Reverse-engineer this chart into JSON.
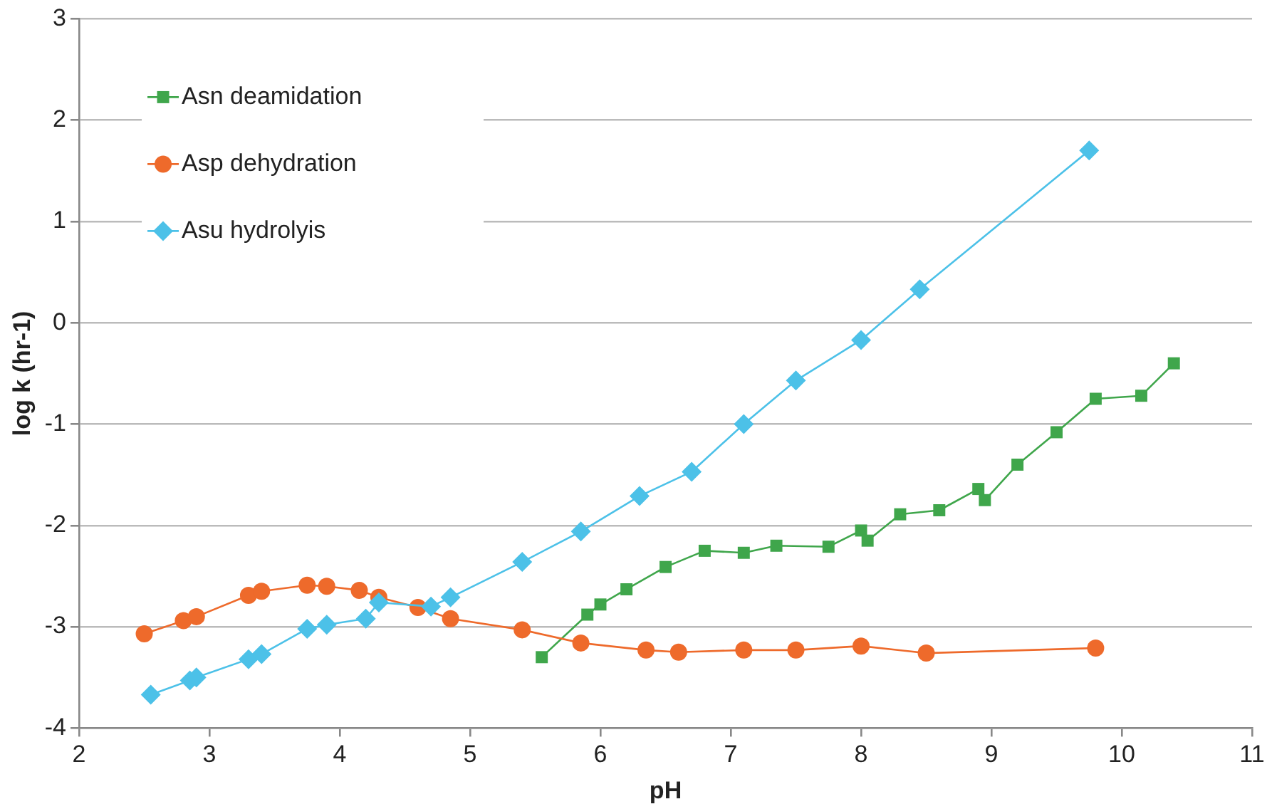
{
  "chart_data": {
    "type": "line",
    "xlabel": "pH",
    "ylabel": "log k (hr-1)",
    "xlim": [
      2,
      11
    ],
    "xticks": [
      2,
      3,
      4,
      5,
      6,
      7,
      8,
      9,
      10,
      11
    ],
    "ylim": [
      -4,
      3
    ],
    "yticks": [
      -4,
      -3,
      -2,
      -1,
      0,
      1,
      2,
      3
    ],
    "grid": "y",
    "legend": "top left",
    "line_style": "solid",
    "series": [
      {
        "name": "Asn deamidation",
        "color": "#3fa64b",
        "marker": "square",
        "x": [
          5.55,
          5.9,
          6.0,
          6.2,
          6.5,
          6.8,
          7.1,
          7.35,
          7.75,
          8.0,
          8.05,
          8.3,
          8.6,
          8.9,
          8.95,
          9.2,
          9.5,
          9.8,
          10.15,
          10.4
        ],
        "values": [
          -3.3,
          -2.88,
          -2.78,
          -2.63,
          -2.41,
          -2.25,
          -2.27,
          -2.2,
          -2.21,
          -2.05,
          -2.15,
          -1.89,
          -1.85,
          -1.64,
          -1.75,
          -1.4,
          -1.08,
          -0.75,
          -0.72,
          -0.4
        ]
      },
      {
        "name": "Asp dehydration",
        "color": "#ee6a2b",
        "marker": "circle",
        "x": [
          2.5,
          2.8,
          2.9,
          3.3,
          3.4,
          3.75,
          3.9,
          4.15,
          4.3,
          4.6,
          4.85,
          5.4,
          5.85,
          6.35,
          6.6,
          7.1,
          7.5,
          8.0,
          8.5,
          9.8
        ],
        "values": [
          -3.07,
          -2.94,
          -2.9,
          -2.69,
          -2.65,
          -2.59,
          -2.6,
          -2.64,
          -2.71,
          -2.81,
          -2.92,
          -3.03,
          -3.16,
          -3.23,
          -3.25,
          -3.23,
          -3.23,
          -3.19,
          -3.26,
          -3.21
        ]
      },
      {
        "name": "Asu hydrolyis",
        "color": "#4cc1e8",
        "marker": "diamond",
        "x": [
          2.55,
          2.85,
          2.9,
          3.3,
          3.4,
          3.75,
          3.9,
          4.2,
          4.3,
          4.7,
          4.85,
          5.4,
          5.85,
          6.3,
          6.7,
          7.1,
          7.5,
          8.0,
          8.45,
          9.75
        ],
        "values": [
          -3.67,
          -3.53,
          -3.5,
          -3.32,
          -3.27,
          -3.02,
          -2.98,
          -2.92,
          -2.76,
          -2.8,
          -2.71,
          -2.36,
          -2.06,
          -1.71,
          -1.47,
          -1.0,
          -0.57,
          -0.17,
          0.33,
          1.7
        ]
      }
    ]
  }
}
